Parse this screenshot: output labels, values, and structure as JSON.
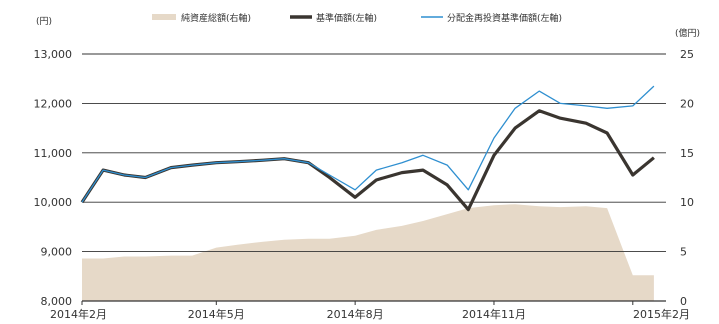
{
  "chart_data": {
    "type": "line",
    "left_unit": "(円)",
    "right_unit": "(億円)",
    "left_axis": {
      "min": 8000,
      "max": 13000,
      "ticks": [
        "8,000",
        "9,000",
        "10,000",
        "11,000",
        "12,000",
        "13,000"
      ]
    },
    "right_axis": {
      "min": 0,
      "max": 25,
      "ticks": [
        "0",
        "5",
        "10",
        "15",
        "20",
        "25"
      ]
    },
    "x_tick_labels": [
      "2014年2月",
      "2014年5月",
      "2014年8月",
      "2014年11月",
      "2015年2月"
    ],
    "x": [
      "2014-02-01",
      "2014-02-15",
      "2014-03-01",
      "2014-03-15",
      "2014-04-01",
      "2014-04-15",
      "2014-05-01",
      "2014-05-15",
      "2014-06-01",
      "2014-06-15",
      "2014-07-01",
      "2014-07-15",
      "2014-08-01",
      "2014-08-15",
      "2014-09-01",
      "2014-09-15",
      "2014-10-01",
      "2014-10-15",
      "2014-11-01",
      "2014-11-15",
      "2014-12-01",
      "2014-12-15",
      "2015-01-01",
      "2015-01-15",
      "2015-02-01",
      "2015-02-15"
    ],
    "grid": true,
    "legend_position": "top",
    "series": [
      {
        "name": "純資産総額(右軸)",
        "axis": "right",
        "kind": "area",
        "color": "#e6d9c8",
        "values": [
          4.3,
          4.3,
          4.5,
          4.5,
          4.6,
          4.6,
          5.4,
          5.7,
          6.0,
          6.2,
          6.3,
          6.3,
          6.6,
          7.2,
          7.6,
          8.1,
          8.8,
          9.4,
          9.7,
          9.8,
          9.6,
          9.5,
          9.6,
          9.4,
          2.6,
          2.6
        ]
      },
      {
        "name": "基準価額(左軸)",
        "axis": "left",
        "kind": "line",
        "color": "#3a3530",
        "values": [
          10000,
          10650,
          10550,
          10500,
          10700,
          10750,
          10800,
          10820,
          10850,
          10880,
          10800,
          10500,
          10100,
          10450,
          10600,
          10650,
          10350,
          9850,
          10950,
          11500,
          11850,
          11700,
          11600,
          11400,
          10550,
          10900
        ]
      },
      {
        "name": "分配金再投資基準価額(左軸)",
        "axis": "left",
        "kind": "line",
        "color": "#2f8fd0",
        "values": [
          10000,
          10650,
          10550,
          10500,
          10700,
          10750,
          10800,
          10820,
          10850,
          10880,
          10800,
          10550,
          10250,
          10650,
          10800,
          10950,
          10750,
          10250,
          11300,
          11900,
          12250,
          12000,
          11950,
          11900,
          11950,
          12350
        ]
      }
    ]
  }
}
